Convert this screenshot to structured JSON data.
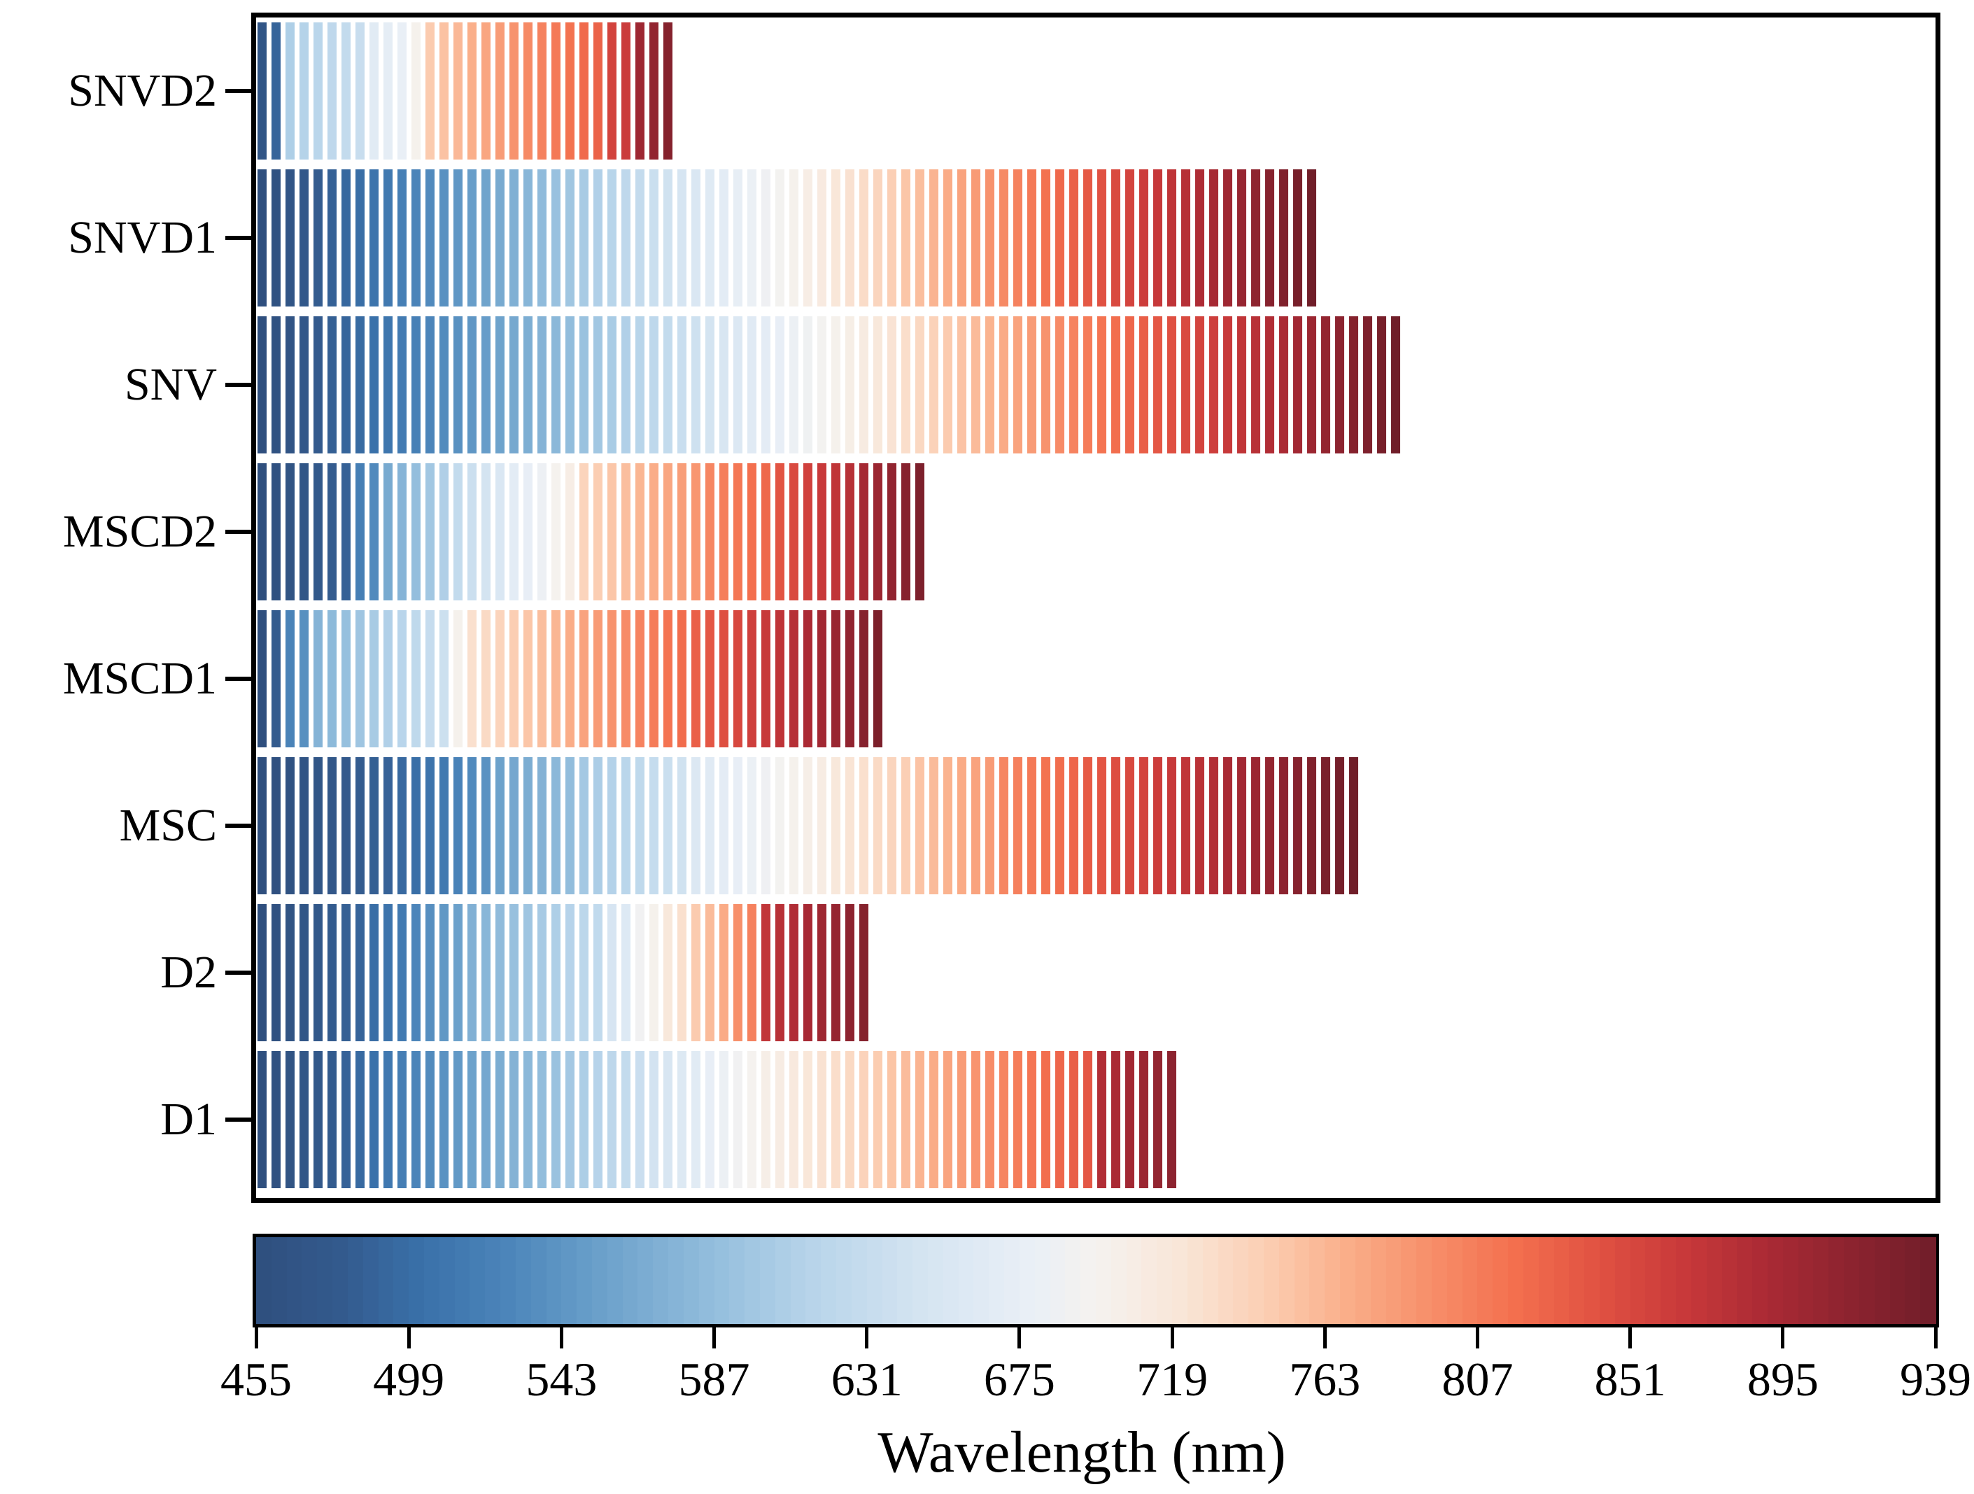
{
  "chart_data": {
    "type": "heatmap",
    "title": "",
    "xlabel": "Wavelength (nm)",
    "ylabel": "",
    "x_range": [
      455,
      939
    ],
    "legend_position": "bottom-colorbar",
    "grid": false,
    "description": "Selected wavelengths per spectral preprocessing method; each stripe is one selected wavelength, color-coded by its wavelength value (nm) on the colorbar scale.",
    "colorbar": {
      "min": 455,
      "max": 939,
      "ticks": [
        455,
        499,
        543,
        587,
        631,
        675,
        719,
        763,
        807,
        851,
        895,
        939
      ],
      "segments": 110,
      "colormap_stops": [
        [
          0.0,
          "#2F4F7E"
        ],
        [
          0.05,
          "#335A8D"
        ],
        [
          0.1,
          "#3A71AA"
        ],
        [
          0.15,
          "#4C85BA"
        ],
        [
          0.2,
          "#689EC9"
        ],
        [
          0.27,
          "#92BDDC"
        ],
        [
          0.33,
          "#B7D4EA"
        ],
        [
          0.4,
          "#D6E5F2"
        ],
        [
          0.46,
          "#E9EFF6"
        ],
        [
          0.5,
          "#F5F2EF"
        ],
        [
          0.55,
          "#F9E6D8"
        ],
        [
          0.6,
          "#FBCFB4"
        ],
        [
          0.65,
          "#FAAE89"
        ],
        [
          0.7,
          "#F78E69"
        ],
        [
          0.75,
          "#F36F4E"
        ],
        [
          0.8,
          "#E05142"
        ],
        [
          0.85,
          "#C8393A"
        ],
        [
          0.9,
          "#AA2A34"
        ],
        [
          0.95,
          "#8C232F"
        ],
        [
          1.0,
          "#701E29"
        ]
      ]
    },
    "rows": [
      {
        "method": "SNVD2",
        "selected_wavelengths_nm": [
          468,
          490,
          608,
          613,
          618,
          623,
          628,
          633,
          666,
          672,
          678,
          700,
          748,
          755,
          762,
          769,
          776,
          783,
          790,
          797,
          803,
          810,
          816,
          822,
          828,
          856,
          864,
          900,
          910,
          921
        ]
      },
      {
        "method": "SNVD1",
        "selected_wavelengths_nm": [
          455,
          461,
          468,
          474,
          481,
          487,
          494,
          500,
          507,
          513,
          520,
          526,
          532,
          539,
          545,
          552,
          558,
          565,
          571,
          578,
          584,
          591,
          597,
          603,
          610,
          616,
          623,
          629,
          636,
          642,
          649,
          655,
          662,
          668,
          674,
          681,
          687,
          694,
          700,
          707,
          713,
          720,
          726,
          732,
          739,
          745,
          752,
          758,
          765,
          771,
          778,
          784,
          791,
          797,
          803,
          810,
          816,
          823,
          829,
          836,
          842,
          849,
          855,
          862,
          868,
          874,
          881,
          887,
          894,
          900,
          907,
          913,
          920,
          926,
          933,
          939
        ]
      },
      {
        "method": "SNV",
        "selected_wavelengths_nm": [
          455,
          461,
          467,
          473,
          479,
          485,
          491,
          497,
          503,
          509,
          515,
          521,
          527,
          533,
          539,
          545,
          551,
          557,
          563,
          569,
          575,
          580,
          586,
          592,
          598,
          604,
          610,
          616,
          622,
          628,
          634,
          640,
          646,
          652,
          658,
          664,
          670,
          676,
          682,
          688,
          694,
          700,
          706,
          712,
          718,
          724,
          730,
          736,
          742,
          748,
          754,
          760,
          766,
          772,
          778,
          784,
          790,
          796,
          802,
          808,
          814,
          819,
          825,
          831,
          837,
          843,
          849,
          855,
          861,
          867,
          873,
          879,
          885,
          891,
          897,
          903,
          909,
          915,
          921,
          927,
          933,
          939
        ]
      },
      {
        "method": "MSCD2",
        "selected_wavelengths_nm": [
          455,
          460,
          465,
          470,
          476,
          481,
          487,
          520,
          532,
          565,
          576,
          587,
          598,
          609,
          628,
          637,
          646,
          655,
          668,
          676,
          684,
          698,
          708,
          740,
          746,
          752,
          758,
          764,
          770,
          776,
          782,
          788,
          800,
          806,
          812,
          818,
          824,
          840,
          849,
          858,
          866,
          873,
          880,
          895,
          903,
          911,
          920,
          928
        ]
      },
      {
        "method": "MSCD1",
        "selected_wavelengths_nm": [
          455,
          480,
          525,
          538,
          575,
          582,
          589,
          596,
          603,
          610,
          617,
          624,
          631,
          638,
          700,
          728,
          734,
          740,
          746,
          752,
          758,
          764,
          770,
          778,
          784,
          790,
          796,
          802,
          808,
          814,
          820,
          830,
          837,
          844,
          851,
          860,
          867,
          874,
          881,
          890,
          897,
          904,
          911,
          920,
          929
        ]
      },
      {
        "method": "MSC",
        "selected_wavelengths_nm": [
          455,
          458,
          462,
          466,
          470,
          473,
          477,
          481,
          484,
          488,
          495,
          501,
          507,
          513,
          524,
          532,
          540,
          556,
          562,
          568,
          574,
          580,
          586,
          600,
          606,
          612,
          618,
          624,
          630,
          636,
          642,
          658,
          664,
          670,
          676,
          681,
          687,
          694,
          700,
          705,
          710,
          718,
          723,
          728,
          734,
          739,
          745,
          754,
          760,
          766,
          772,
          778,
          784,
          800,
          805,
          810,
          815,
          820,
          825,
          834,
          839,
          845,
          850,
          855,
          862,
          867,
          873,
          878,
          884,
          892,
          897,
          903,
          908,
          915,
          920,
          925,
          930,
          935,
          939
        ]
      },
      {
        "method": "D2",
        "selected_wavelengths_nm": [
          455,
          460,
          465,
          470,
          475,
          480,
          485,
          490,
          500,
          507,
          514,
          528,
          537,
          546,
          555,
          572,
          578,
          584,
          590,
          596,
          602,
          608,
          614,
          620,
          626,
          650,
          660,
          690,
          700,
          718,
          728,
          748,
          760,
          772,
          792,
          804,
          872,
          879,
          886,
          893,
          900,
          907,
          914,
          921
        ]
      },
      {
        "method": "D1",
        "selected_wavelengths_nm": [
          455,
          460,
          465,
          470,
          475,
          480,
          488,
          496,
          504,
          512,
          519,
          526,
          533,
          540,
          547,
          556,
          562,
          568,
          574,
          580,
          586,
          592,
          600,
          607,
          614,
          621,
          628,
          635,
          645,
          652,
          659,
          666,
          676,
          683,
          690,
          697,
          705,
          710,
          715,
          720,
          725,
          730,
          735,
          741,
          747,
          753,
          759,
          765,
          771,
          777,
          783,
          789,
          795,
          801,
          807,
          813,
          819,
          825,
          831,
          837,
          885,
          891,
          897,
          903,
          909,
          915
        ]
      }
    ]
  }
}
